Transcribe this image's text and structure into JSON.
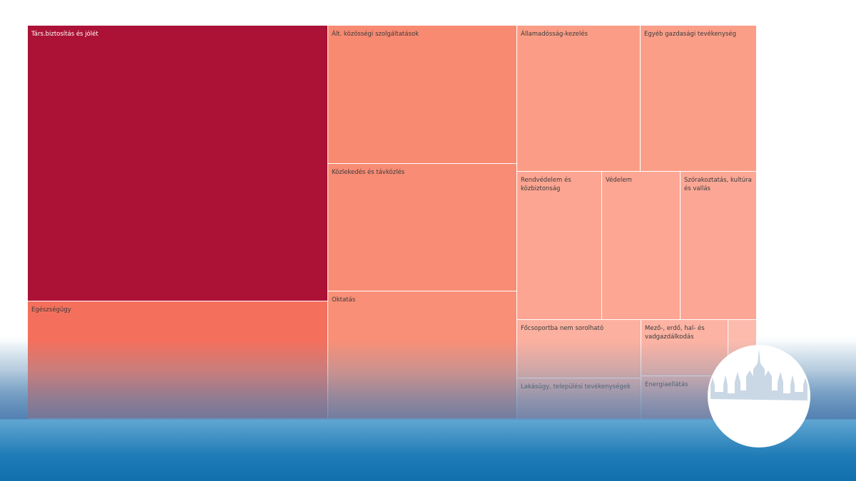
{
  "chart_data": {
    "type": "treemap",
    "color_scale": {
      "high": "#ab1236",
      "low": "#fbb6a7"
    },
    "items": [
      {
        "label": "Társ.biztosítás és jólét",
        "value": 21500,
        "color": "#ab1236"
      },
      {
        "label": "Egészségügy",
        "value": 6600,
        "color": "#f4705c"
      },
      {
        "label": "Ált. közösségi szolgáltatások",
        "value": 4800,
        "color": "#f88a72"
      },
      {
        "label": "Közlekedés és távközlés",
        "value": 4400,
        "color": "#f88c74"
      },
      {
        "label": "Oktatás",
        "value": 4300,
        "color": "#f98f77"
      },
      {
        "label": "Államadósság-kezelés",
        "value": 2600,
        "color": "#fb9d86"
      },
      {
        "label": "Egyéb gazdasági tevékenység",
        "value": 2500,
        "color": "#fb9e88"
      },
      {
        "label": "Rendvédelem és közbiztonság",
        "value": 1800,
        "color": "#fca592"
      },
      {
        "label": "Védelem",
        "value": 1700,
        "color": "#fca693"
      },
      {
        "label": "Szórakoztatás, kultúra és vallás",
        "value": 1600,
        "color": "#fca795"
      },
      {
        "label": "Főcsoportba nem sorolható",
        "value": 1100,
        "color": "#fcb09f"
      },
      {
        "label": "Lakásügy, települési tevékenységek",
        "value": 770,
        "color": "#fcb6a7"
      },
      {
        "label": "Mező-, erdő, hal- és vadgazdálkodás",
        "value": 950,
        "color": "#fcb3a3"
      },
      {
        "label": "Energiaellátás",
        "value": 570,
        "color": "#fcb8aa"
      },
      {
        "label": "",
        "value": 400,
        "color": "#fcbbad"
      }
    ]
  }
}
